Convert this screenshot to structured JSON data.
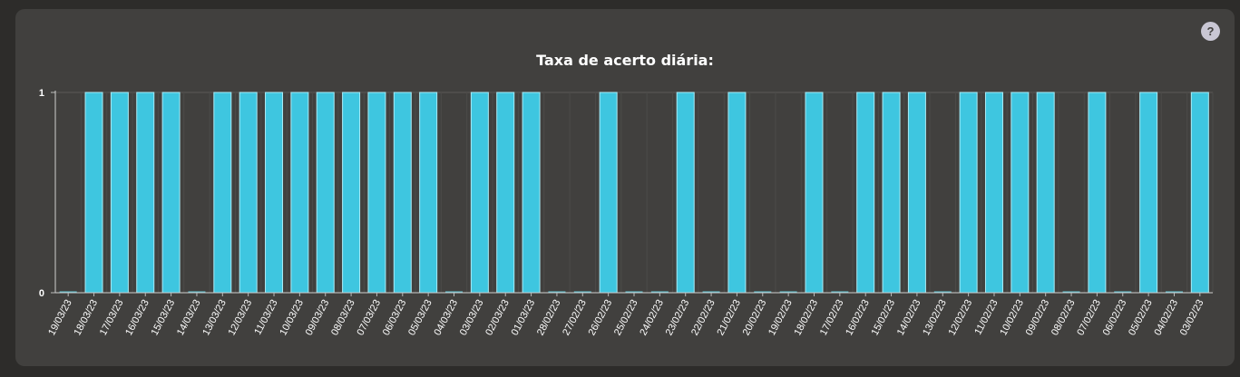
{
  "help": {
    "label": "?"
  },
  "chart_data": {
    "type": "bar",
    "title": "Taxa de acerto diária:",
    "xlabel": "",
    "ylabel": "",
    "ylim": [
      0,
      1
    ],
    "yticks": [
      0,
      1
    ],
    "grid": true,
    "bar_color": "#3ec6e0",
    "bar_stroke": "#a9ecf7",
    "zero_color": "#5fc6d6",
    "categories": [
      "19/03/23",
      "18/03/23",
      "17/03/23",
      "16/03/23",
      "15/03/23",
      "14/03/23",
      "13/03/23",
      "12/03/23",
      "11/03/23",
      "10/03/23",
      "09/03/23",
      "08/03/23",
      "07/03/23",
      "06/03/23",
      "05/03/23",
      "04/03/23",
      "03/03/23",
      "02/03/23",
      "01/03/23",
      "28/02/23",
      "27/02/23",
      "26/02/23",
      "25/02/23",
      "24/02/23",
      "23/02/23",
      "22/02/23",
      "21/02/23",
      "20/02/23",
      "19/02/23",
      "18/02/23",
      "17/02/23",
      "16/02/23",
      "15/02/23",
      "14/02/23",
      "13/02/23",
      "12/02/23",
      "11/02/23",
      "10/02/23",
      "09/02/23",
      "08/02/23",
      "07/02/23",
      "06/02/23",
      "05/02/23",
      "04/02/23",
      "03/02/23"
    ],
    "values": [
      0,
      1,
      1,
      1,
      1,
      0,
      1,
      1,
      1,
      1,
      1,
      1,
      1,
      1,
      1,
      0,
      1,
      1,
      1,
      0,
      0,
      1,
      0,
      0,
      1,
      0,
      1,
      0,
      0,
      1,
      0,
      1,
      1,
      1,
      0,
      1,
      1,
      1,
      1,
      0,
      1,
      0,
      1,
      0,
      1
    ]
  }
}
